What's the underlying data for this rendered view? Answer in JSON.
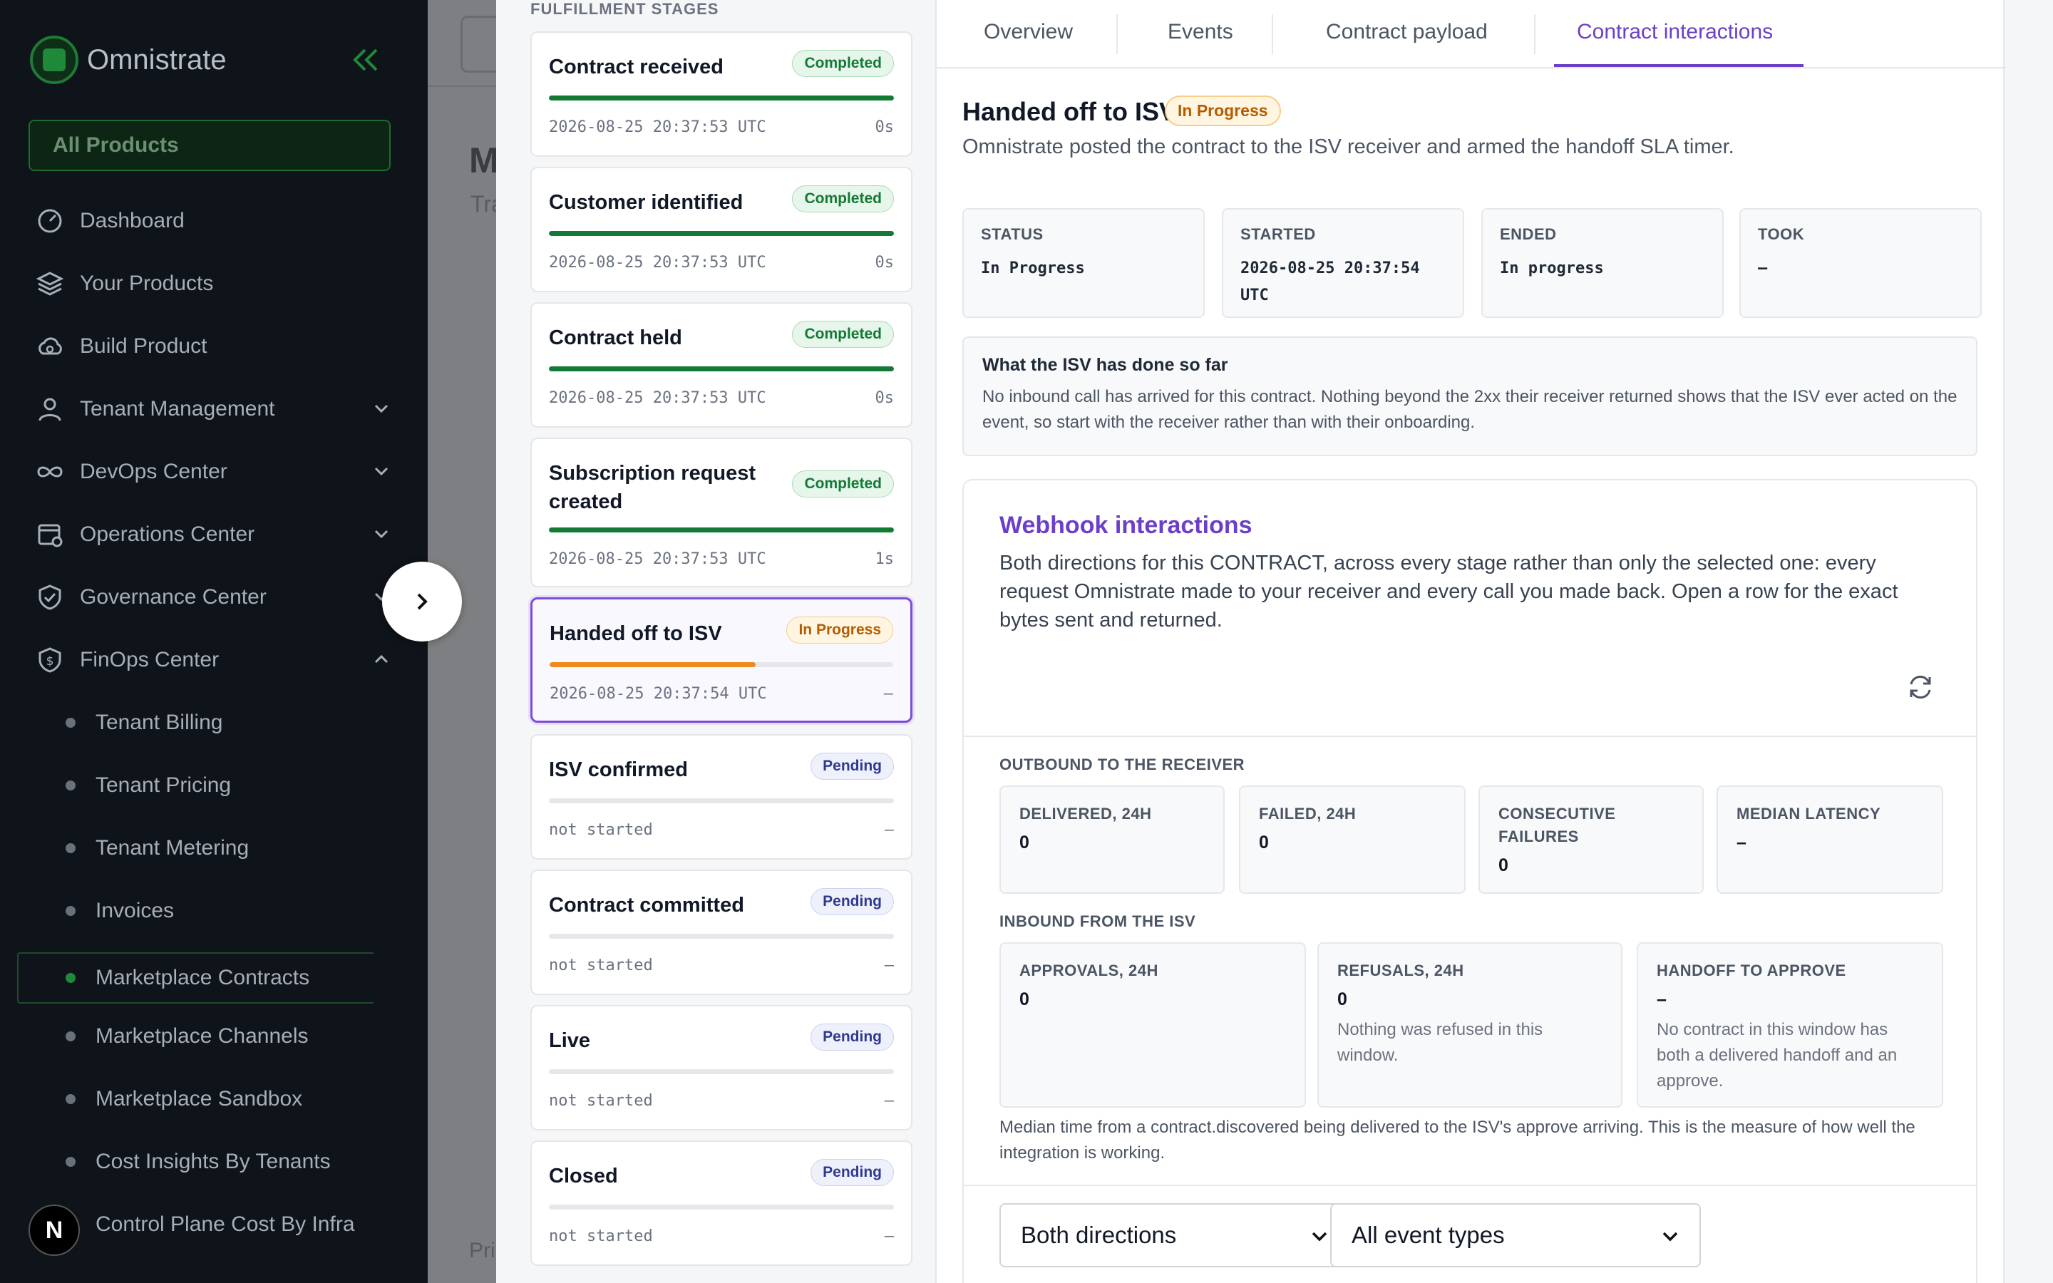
{
  "sidebar": {
    "brand": "Omnistrate",
    "all_products": "All Products",
    "nav": [
      {
        "label": "Dashboard"
      },
      {
        "label": "Your Products"
      },
      {
        "label": "Build Product"
      },
      {
        "label": "Tenant Management"
      },
      {
        "label": "DevOps Center"
      },
      {
        "label": "Operations Center"
      },
      {
        "label": "Governance Center"
      },
      {
        "label": "FinOps Center"
      }
    ],
    "finops_items": [
      {
        "label": "Tenant Billing"
      },
      {
        "label": "Tenant Pricing"
      },
      {
        "label": "Tenant Metering"
      },
      {
        "label": "Invoices"
      },
      {
        "label": "Marketplace Contracts"
      },
      {
        "label": "Marketplace Channels"
      },
      {
        "label": "Marketplace Sandbox"
      },
      {
        "label": "Cost Insights By Tenants"
      },
      {
        "label": "Control Plane Cost By Infra"
      }
    ],
    "avatar_letter": "N"
  },
  "background_page": {
    "heading_fragment": "M",
    "subheading_fragment": "Tra",
    "footer_fragment": "Pri"
  },
  "stages": {
    "title": "FULFILLMENT STAGES",
    "items": [
      {
        "name": "Contract received",
        "status": "Completed",
        "timestamp": "2026-08-25 20:37:53 UTC",
        "duration": "0s",
        "progress": 1.0
      },
      {
        "name": "Customer identified",
        "status": "Completed",
        "timestamp": "2026-08-25 20:37:53 UTC",
        "duration": "0s",
        "progress": 1.0
      },
      {
        "name": "Contract held",
        "status": "Completed",
        "timestamp": "2026-08-25 20:37:53 UTC",
        "duration": "0s",
        "progress": 1.0
      },
      {
        "name": "Subscription request created",
        "status": "Completed",
        "timestamp": "2026-08-25 20:37:53 UTC",
        "duration": "1s",
        "progress": 1.0
      },
      {
        "name": "Handed off to ISV",
        "status": "In Progress",
        "timestamp": "2026-08-25 20:37:54 UTC",
        "duration": "–",
        "progress": 0.6
      },
      {
        "name": "ISV confirmed",
        "status": "Pending",
        "timestamp": "not started",
        "duration": "–",
        "progress": 0
      },
      {
        "name": "Contract committed",
        "status": "Pending",
        "timestamp": "not started",
        "duration": "–",
        "progress": 0
      },
      {
        "name": "Live",
        "status": "Pending",
        "timestamp": "not started",
        "duration": "–",
        "progress": 0
      },
      {
        "name": "Closed",
        "status": "Pending",
        "timestamp": "not started",
        "duration": "–",
        "progress": 0
      }
    ]
  },
  "tabs": [
    {
      "label": "Overview"
    },
    {
      "label": "Events"
    },
    {
      "label": "Contract payload"
    },
    {
      "label": "Contract interactions"
    }
  ],
  "detail": {
    "title": "Handed off to ISV",
    "badge": "In Progress",
    "description": "Omnistrate posted the contract to the ISV receiver and armed the handoff SLA timer.",
    "stats": [
      {
        "label": "STATUS",
        "value": "In Progress"
      },
      {
        "label": "STARTED",
        "value": "2026-08-25 20:37:54 UTC"
      },
      {
        "label": "ENDED",
        "value": "In progress"
      },
      {
        "label": "TOOK",
        "value": "–"
      }
    ],
    "note_title": "What the ISV has done so far",
    "note_body": "No inbound call has arrived for this contract. Nothing beyond the 2xx their receiver returned shows that the ISV ever acted on the event, so start with the receiver rather than with their onboarding."
  },
  "webhook": {
    "title": "Webhook interactions",
    "description": "Both directions for this CONTRACT, across every stage rather than only the selected one: every request Omnistrate made to your receiver and every call you made back. Open a row for the exact bytes sent and returned.",
    "outbound_label": "OUTBOUND TO THE RECEIVER",
    "outbound": [
      {
        "label": "DELIVERED, 24H",
        "value": "0"
      },
      {
        "label": "FAILED, 24H",
        "value": "0"
      },
      {
        "label": "CONSECUTIVE FAILURES",
        "value": "0"
      },
      {
        "label": "MEDIAN LATENCY",
        "value": "–"
      }
    ],
    "inbound_label": "INBOUND FROM THE ISV",
    "inbound": [
      {
        "label": "APPROVALS, 24H",
        "value": "0",
        "sub": ""
      },
      {
        "label": "REFUSALS, 24H",
        "value": "0",
        "sub": "Nothing was refused in this window."
      },
      {
        "label": "HANDOFF TO APPROVE",
        "value": "–",
        "sub": "No contract in this window has both a delivered handoff and an approve."
      }
    ],
    "footnote": "Median time from a contract.discovered being delivered to the ISV's approve arriving. This is the measure of how well the integration is working.",
    "direction_filter": "Both directions",
    "event_filter": "All event types"
  },
  "colors": {
    "accent": "#6b3fc8",
    "completed": "#137a35",
    "in_progress": "#f08a1c",
    "brand_green": "#1e8a39"
  }
}
